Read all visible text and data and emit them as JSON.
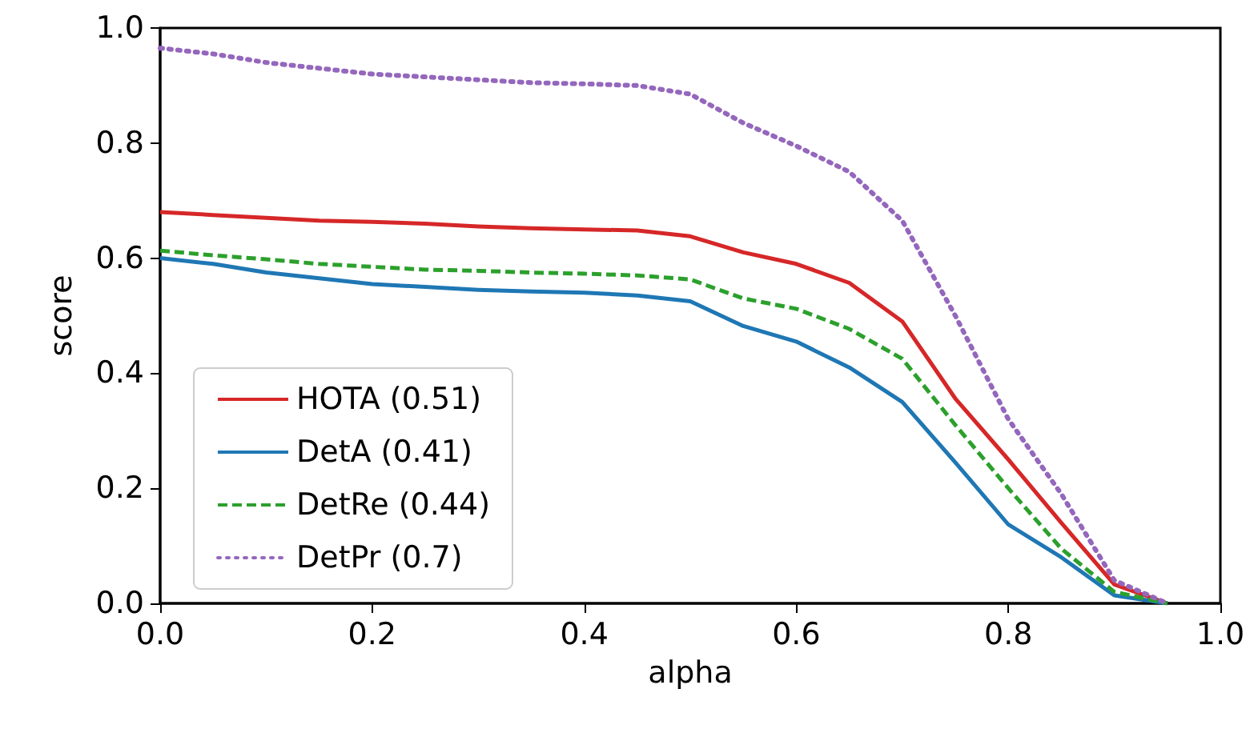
{
  "chart_data": {
    "type": "line",
    "xlabel": "alpha",
    "ylabel": "score",
    "x": [
      0,
      0.05,
      0.1,
      0.15,
      0.2,
      0.25,
      0.3,
      0.35,
      0.4,
      0.45,
      0.5,
      0.55,
      0.6,
      0.65,
      0.7,
      0.75,
      0.8,
      0.85,
      0.9,
      0.95
    ],
    "series": [
      {
        "name": "HOTA (0.51)",
        "color": "#d62728",
        "line_style": "solid",
        "values": [
          0.68,
          0.675,
          0.67,
          0.665,
          0.663,
          0.66,
          0.655,
          0.652,
          0.65,
          0.648,
          0.638,
          0.61,
          0.59,
          0.557,
          0.49,
          0.356,
          0.25,
          0.14,
          0.033,
          0
        ]
      },
      {
        "name": "DetA (0.41)",
        "color": "#1f77b4",
        "line_style": "solid",
        "values": [
          0.6,
          0.59,
          0.575,
          0.565,
          0.555,
          0.55,
          0.545,
          0.542,
          0.54,
          0.535,
          0.525,
          0.482,
          0.455,
          0.41,
          0.35,
          0.245,
          0.137,
          0.08,
          0.014,
          0
        ]
      },
      {
        "name": "DetRe (0.44)",
        "color": "#2ca02c",
        "line_style": "dashed",
        "values": [
          0.613,
          0.605,
          0.598,
          0.59,
          0.585,
          0.58,
          0.578,
          0.575,
          0.573,
          0.57,
          0.563,
          0.53,
          0.512,
          0.477,
          0.425,
          0.31,
          0.2,
          0.095,
          0.02,
          0
        ]
      },
      {
        "name": "DetPr (0.7)",
        "color": "#9467bd",
        "line_style": "dotted",
        "values": [
          0.965,
          0.955,
          0.94,
          0.93,
          0.92,
          0.915,
          0.91,
          0.905,
          0.903,
          0.9,
          0.885,
          0.835,
          0.795,
          0.75,
          0.665,
          0.5,
          0.32,
          0.19,
          0.04,
          0
        ]
      }
    ],
    "xlim": [
      0,
      1
    ],
    "xticks": [
      {
        "value": 0,
        "label": "0.0"
      },
      0.2,
      0.4,
      0.6,
      0.8,
      {
        "value": 1,
        "label": "1.0"
      }
    ],
    "ylim": [
      0,
      1
    ],
    "yticks": [
      {
        "value": 0,
        "label": "0.0"
      },
      0.2,
      0.4,
      0.6,
      0.8,
      {
        "value": 1,
        "label": "1.0"
      }
    ],
    "grid": false,
    "legend": "bottom left",
    "marker": "none"
  }
}
